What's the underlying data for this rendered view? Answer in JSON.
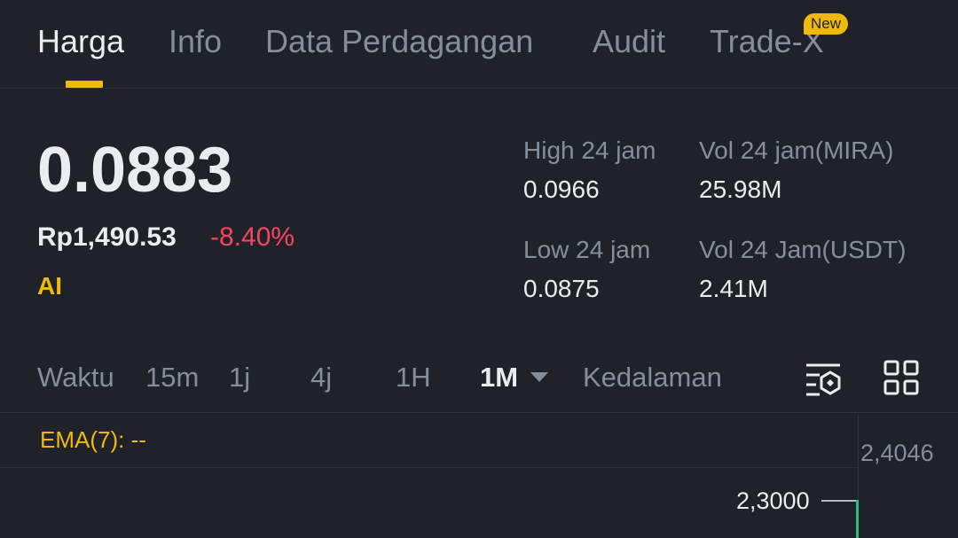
{
  "tabs": [
    {
      "label": "Harga"
    },
    {
      "label": "Info"
    },
    {
      "label": "Data Perdagangan"
    },
    {
      "label": "Audit"
    },
    {
      "label": "Trade-X",
      "badge": "New"
    }
  ],
  "price": {
    "last": "0.0883",
    "fiat": "Rp1,490.53",
    "change": "-8.40%",
    "tag": "AI"
  },
  "stats": {
    "high_label": "High 24 jam",
    "high_value": "0.0966",
    "low_label": "Low 24 jam",
    "low_value": "0.0875",
    "vol_base_label": "Vol 24 jam(MIRA)",
    "vol_base_value": "25.98M",
    "vol_quote_label": "Vol 24 Jam(USDT)",
    "vol_quote_value": "2.41M"
  },
  "intervals": {
    "time_label": "Waktu",
    "items": [
      "15m",
      "1j",
      "4j",
      "1H",
      "1M"
    ],
    "selected": "1M",
    "depth_label": "Kedalaman"
  },
  "chart": {
    "ema_label": "EMA(7): --",
    "axis_top": "2,4046",
    "current_line": "2,3000"
  },
  "colors": {
    "accent": "#f0b90b",
    "down": "#f6465d",
    "up": "#2ebd85",
    "background": "#1f2229"
  }
}
